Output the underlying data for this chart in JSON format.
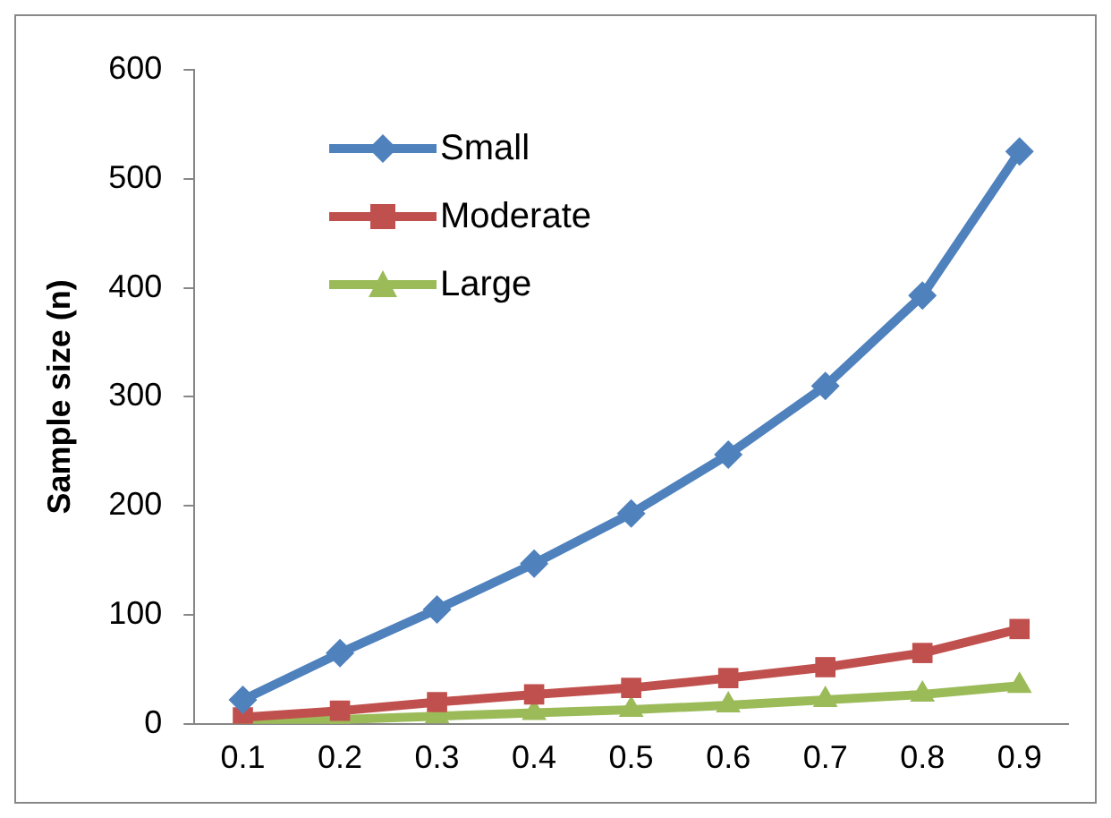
{
  "chart_data": {
    "type": "line",
    "ylabel": "Sample size (n)",
    "categories": [
      "0.1",
      "0.2",
      "0.3",
      "0.4",
      "0.5",
      "0.6",
      "0.7",
      "0.8",
      "0.9"
    ],
    "series": [
      {
        "name": "Small",
        "color": "#4f81bd",
        "marker": "diamond",
        "values": [
          22,
          65,
          105,
          147,
          193,
          247,
          310,
          393,
          525
        ]
      },
      {
        "name": "Moderate",
        "color": "#c0504d",
        "marker": "square",
        "values": [
          6,
          12,
          20,
          27,
          33,
          42,
          52,
          65,
          87
        ]
      },
      {
        "name": "Large",
        "color": "#9bbb59",
        "marker": "triangle",
        "values": [
          2,
          4,
          7,
          10,
          13,
          17,
          22,
          27,
          35
        ]
      }
    ],
    "ylim": [
      0,
      600
    ],
    "yticks": [
      0,
      100,
      200,
      300,
      400,
      500,
      600
    ],
    "grid": false,
    "legend": "top left"
  }
}
